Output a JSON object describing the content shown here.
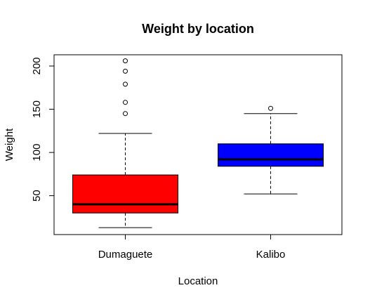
{
  "chart_data": {
    "type": "box",
    "title": "Weight by location",
    "xlabel": "Location",
    "ylabel": "Weight",
    "categories": [
      "Dumaguete",
      "Kalibo"
    ],
    "ylim": [
      5,
      213
    ],
    "yticks": [
      50,
      100,
      150,
      200
    ],
    "grid": false,
    "legend": "none",
    "boxes": [
      {
        "category": "Dumaguete",
        "color": "#ff0000",
        "whisker_low": 13,
        "q1": 30,
        "median": 40,
        "q3": 74,
        "whisker_high": 122,
        "outliers": [
          145,
          158,
          179,
          194,
          206
        ]
      },
      {
        "category": "Kalibo",
        "color": "#0000ff",
        "whisker_low": 52,
        "q1": 84,
        "median": 92,
        "q3": 110,
        "whisker_high": 145,
        "outliers": [
          151
        ]
      }
    ]
  }
}
